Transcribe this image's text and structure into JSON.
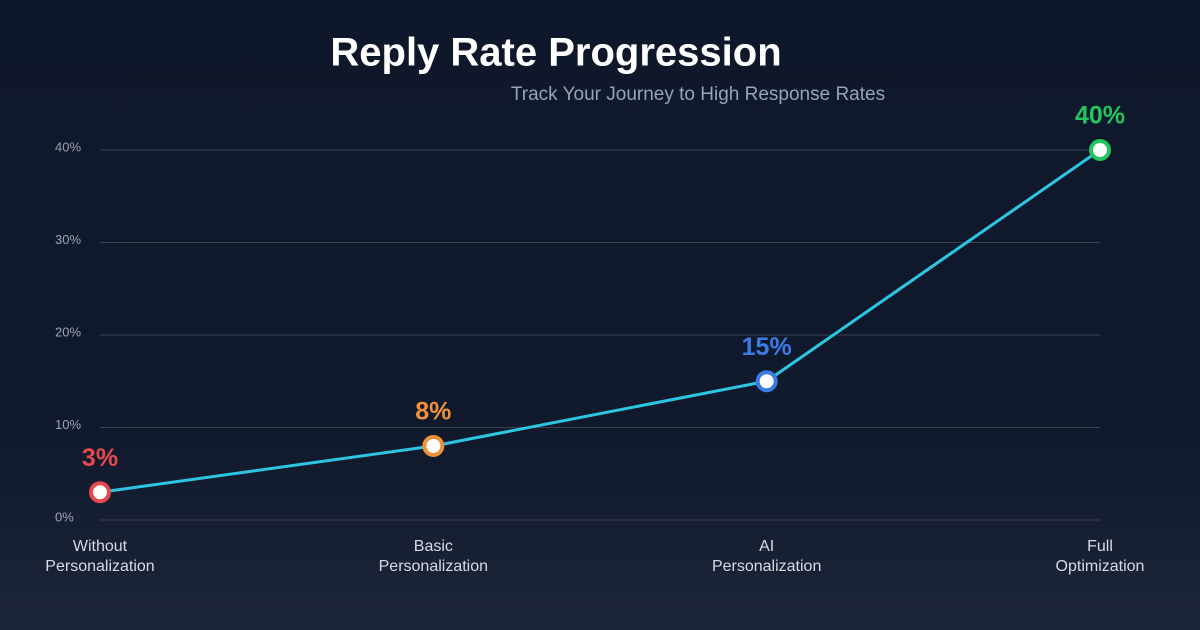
{
  "chart_data": {
    "type": "line",
    "title": "Reply Rate Progression",
    "subtitle": "Track Your Journey to High Response Rates",
    "categories": [
      [
        "Without",
        "Personalization"
      ],
      [
        "Basic",
        "Personalization"
      ],
      [
        "AI",
        "Personalization"
      ],
      [
        "Full",
        "Optimization"
      ]
    ],
    "values": [
      3,
      8,
      15,
      40
    ],
    "value_labels": [
      "3%",
      "8%",
      "15%",
      "40%"
    ],
    "color": "#2cc6e3",
    "point_colors": [
      "#e5484d",
      "#f0913a",
      "#3b7be8",
      "#22c55e"
    ],
    "ylim": [
      0,
      40
    ],
    "yticks": [
      {
        "value": 0,
        "label": "0%"
      },
      {
        "value": 10,
        "label": "10%"
      },
      {
        "value": 20,
        "label": "20%"
      },
      {
        "value": 30,
        "label": "30%"
      },
      {
        "value": 40,
        "label": "40%"
      }
    ],
    "grid": true
  }
}
